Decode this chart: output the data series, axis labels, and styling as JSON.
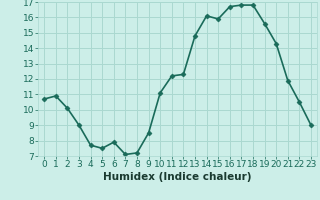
{
  "x": [
    0,
    1,
    2,
    3,
    4,
    5,
    6,
    7,
    8,
    9,
    10,
    11,
    12,
    13,
    14,
    15,
    16,
    17,
    18,
    19,
    20,
    21,
    22,
    23
  ],
  "y": [
    10.7,
    10.9,
    10.1,
    9.0,
    7.7,
    7.5,
    7.9,
    7.1,
    7.2,
    8.5,
    11.1,
    12.2,
    12.3,
    14.8,
    16.1,
    15.9,
    16.7,
    16.8,
    16.8,
    15.6,
    14.3,
    11.9,
    10.5,
    9.0
  ],
  "line_color": "#1a6b5a",
  "marker": "D",
  "marker_size": 2.5,
  "bg_color": "#cceee8",
  "grid_color": "#aad8d0",
  "xlabel": "Humidex (Indice chaleur)",
  "xlim": [
    -0.5,
    23.5
  ],
  "ylim": [
    7,
    17
  ],
  "yticks": [
    7,
    8,
    9,
    10,
    11,
    12,
    13,
    14,
    15,
    16,
    17
  ],
  "xticks": [
    0,
    1,
    2,
    3,
    4,
    5,
    6,
    7,
    8,
    9,
    10,
    11,
    12,
    13,
    14,
    15,
    16,
    17,
    18,
    19,
    20,
    21,
    22,
    23
  ],
  "xlabel_fontsize": 7.5,
  "tick_fontsize": 6.5,
  "line_width": 1.2
}
